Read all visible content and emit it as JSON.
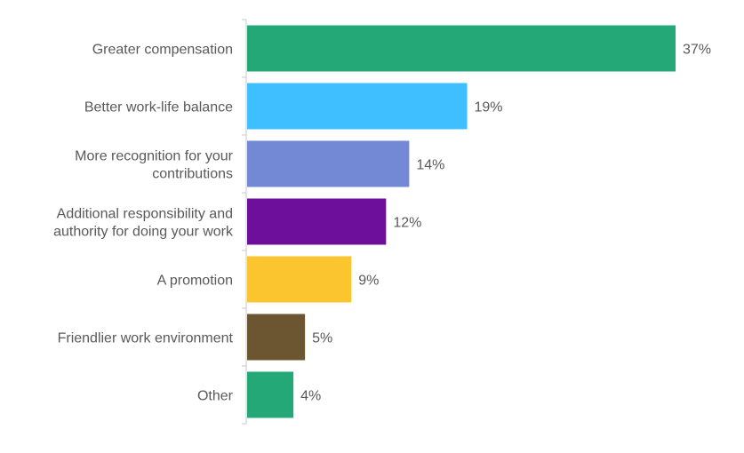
{
  "chart_data": {
    "type": "bar",
    "orientation": "horizontal",
    "categories": [
      [
        "Greater compensation"
      ],
      [
        "Better work-life balance"
      ],
      [
        "More recognition for your",
        "contributions"
      ],
      [
        "Additional responsibility and",
        "authority for doing your work"
      ],
      [
        "A promotion"
      ],
      [
        "Friendlier work environment"
      ],
      [
        "Other"
      ]
    ],
    "values": [
      37,
      19,
      14,
      12,
      9,
      5,
      4
    ],
    "value_labels": [
      "37%",
      "19%",
      "14%",
      "12%",
      "9%",
      "5%",
      "4%"
    ],
    "colors": [
      "#24A878",
      "#3FBFFF",
      "#7489D6",
      "#6E0F9B",
      "#FBC52F",
      "#6B5631",
      "#24A878"
    ],
    "xlim": [
      0,
      40
    ],
    "grid": false,
    "legend": "none",
    "title": "",
    "xlabel": "",
    "ylabel": ""
  }
}
